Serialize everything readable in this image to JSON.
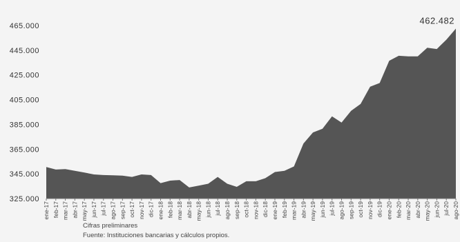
{
  "chart_data": {
    "type": "area",
    "title": "",
    "xlabel": "",
    "ylabel": "",
    "ylim": [
      325000,
      465000
    ],
    "y_ticks": [
      "465.000",
      "445.000",
      "425.000",
      "405.000",
      "385.000",
      "365.000",
      "345.000",
      "325.000"
    ],
    "y_tick_values": [
      465000,
      445000,
      425000,
      405000,
      385000,
      365000,
      345000,
      325000
    ],
    "categories": [
      "ene-17",
      "feb-17",
      "mar-17",
      "abr-17",
      "may-17",
      "jun-17",
      "jul-17",
      "ago-17",
      "sep-17",
      "oct-17",
      "nov-17",
      "dic-17",
      "ene-18",
      "feb-18",
      "mar-18",
      "abr-18",
      "may-18",
      "jun-18",
      "jul-18",
      "ago-18",
      "sep-18",
      "oct-18",
      "nov-18",
      "dic-18",
      "ene-19",
      "feb-19",
      "mar-19",
      "abr-19",
      "may-19",
      "jun-19",
      "jul-19",
      "ago-19",
      "sep-19",
      "oct-19",
      "nov-19",
      "dic-19",
      "ene-20",
      "feb-20",
      "mar-20",
      "abr-20",
      "may-20",
      "jun-20",
      "jul-20",
      "ago-20"
    ],
    "series": [
      {
        "values": [
          350500,
          348500,
          348800,
          347500,
          346000,
          344500,
          344000,
          343800,
          343500,
          342500,
          344500,
          344000,
          337500,
          339500,
          340000,
          334000,
          335500,
          337000,
          342500,
          337000,
          334500,
          339000,
          339000,
          341500,
          346500,
          347500,
          351000,
          369500,
          378500,
          381500,
          391500,
          386500,
          396000,
          401500,
          415500,
          418500,
          436500,
          440500,
          440000,
          440000,
          447000,
          446000,
          453500,
          462482
        ]
      }
    ],
    "last_value_label": "462.482",
    "grid": false,
    "legend": "none",
    "fill_color": "#555555"
  },
  "footnote": "Cifras preliminares",
  "source": "Fuente: Instituciones bancarias y cálculos propios."
}
